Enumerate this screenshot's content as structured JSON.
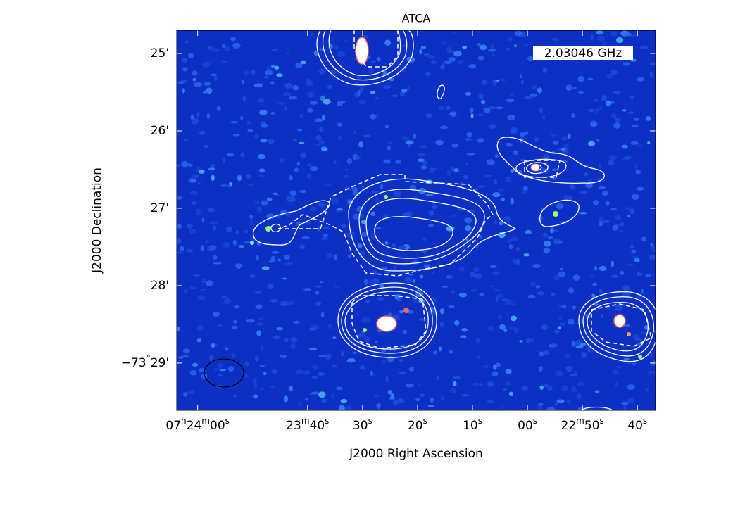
{
  "chart_data": {
    "type": "image",
    "title": "ATCA",
    "xlabel": "J2000 Right Ascension",
    "ylabel": "J2000 Declination",
    "annotation": "2.03046 GHz",
    "xlim": [
      26643.8,
      26556.7
    ],
    "xticks": [
      {
        "value": 26640,
        "label": "07h24m00s"
      },
      {
        "value": 26620,
        "label": "23m40s"
      },
      {
        "value": 26610,
        "label": "30s"
      },
      {
        "value": 26600,
        "label": "20s"
      },
      {
        "value": 26590,
        "label": "10s"
      },
      {
        "value": 26580,
        "label": "00s"
      },
      {
        "value": 26570,
        "label": "22m50s"
      },
      {
        "value": 26560,
        "label": "40s"
      }
    ],
    "ylim": [
      -4409.61,
      -4404.7
    ],
    "yticks": [
      {
        "value": -4405,
        "label": "25'"
      },
      {
        "value": -4406,
        "label": "26'"
      },
      {
        "value": -4407,
        "label": "27'"
      },
      {
        "value": -4408,
        "label": "28'"
      },
      {
        "value": -4409,
        "label": "−73°29'"
      }
    ]
  }
}
